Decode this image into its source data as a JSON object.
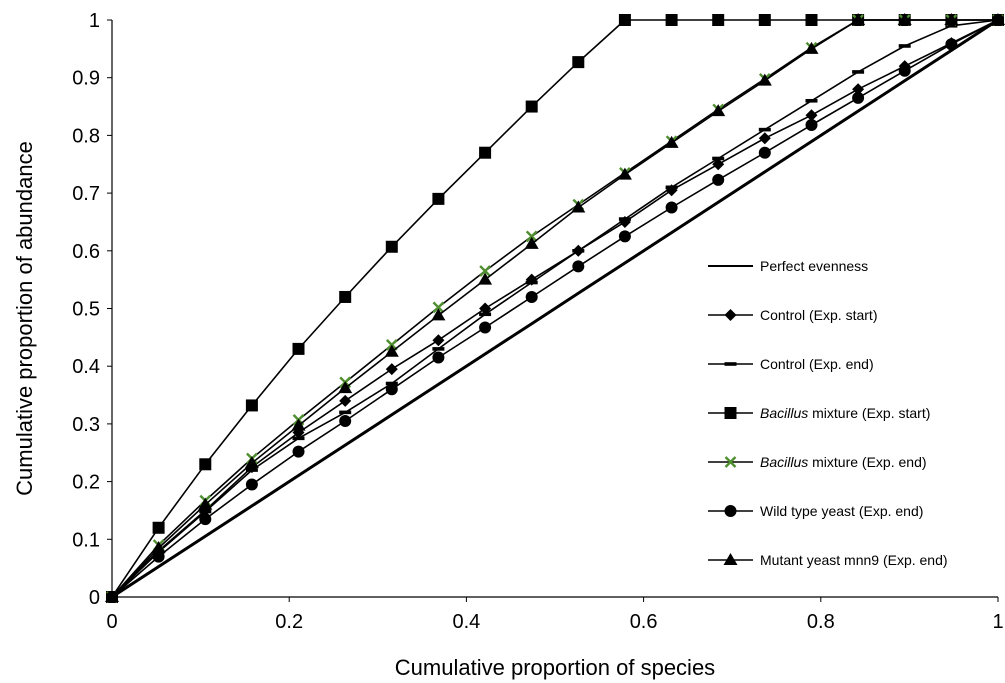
{
  "chart_data": {
    "type": "line",
    "xlabel": "Cumulative proportion of species",
    "ylabel": "Cumulative proportion of abundance",
    "xlim": [
      0,
      1
    ],
    "ylim": [
      0,
      1
    ],
    "x_ticks": [
      "0",
      "0.2",
      "0.4",
      "0.6",
      "0.8",
      "1"
    ],
    "y_ticks": [
      "0",
      "0.1",
      "0.2",
      "0.3",
      "0.4",
      "0.5",
      "0.6",
      "0.7",
      "0.8",
      "0.9",
      "1"
    ],
    "grid": false,
    "legend_position": "right",
    "x": [
      0,
      0.0526,
      0.1053,
      0.1579,
      0.2105,
      0.2632,
      0.3158,
      0.3684,
      0.4211,
      0.4737,
      0.5263,
      0.5789,
      0.6316,
      0.6842,
      0.7368,
      0.7895,
      0.8421,
      0.8947,
      0.9474,
      1
    ],
    "series": [
      {
        "name": "Perfect evenness",
        "marker": "none",
        "line_width": 3,
        "values": [
          0,
          0.0526,
          0.1053,
          0.1579,
          0.2105,
          0.2632,
          0.3158,
          0.3684,
          0.4211,
          0.4737,
          0.5263,
          0.5789,
          0.6316,
          0.6842,
          0.7368,
          0.7895,
          0.8421,
          0.8947,
          0.9474,
          1
        ]
      },
      {
        "name": "Control (Exp. start)",
        "marker": "diamond",
        "line_width": 1.6,
        "values": [
          0,
          0.08,
          0.15,
          0.225,
          0.285,
          0.34,
          0.395,
          0.445,
          0.5,
          0.55,
          0.6,
          0.65,
          0.705,
          0.75,
          0.795,
          0.835,
          0.88,
          0.92,
          0.96,
          1
        ]
      },
      {
        "name": "Control (Exp. end)",
        "marker": "dash",
        "line_width": 1.6,
        "values": [
          0,
          0.078,
          0.148,
          0.22,
          0.275,
          0.32,
          0.37,
          0.43,
          0.49,
          0.545,
          0.6,
          0.655,
          0.71,
          0.76,
          0.81,
          0.86,
          0.91,
          0.955,
          0.99,
          1
        ]
      },
      {
        "name": "Bacillus mixture (Exp. start)",
        "name_italic": "Bacillus",
        "name_rest": " mixture (Exp. start)",
        "marker": "square",
        "line_width": 1.6,
        "values": [
          0,
          0.12,
          0.23,
          0.332,
          0.43,
          0.52,
          0.607,
          0.69,
          0.77,
          0.85,
          0.927,
          1,
          1,
          1,
          1,
          1,
          1,
          1,
          1,
          1
        ]
      },
      {
        "name": "Bacillus mixture (Exp. end)",
        "name_italic": "Bacillus",
        "name_rest": " mixture (Exp. end)",
        "marker": "x",
        "marker_color": "#4f8f2f",
        "line_width": 1.6,
        "values": [
          0,
          0.09,
          0.167,
          0.24,
          0.307,
          0.372,
          0.437,
          0.502,
          0.565,
          0.625,
          0.68,
          0.735,
          0.79,
          0.845,
          0.898,
          0.952,
          1,
          1,
          1,
          1
        ]
      },
      {
        "name": "Wild type yeast (Exp. end)",
        "marker": "circle",
        "line_width": 1.6,
        "values": [
          0,
          0.07,
          0.135,
          0.195,
          0.252,
          0.305,
          0.36,
          0.415,
          0.467,
          0.52,
          0.573,
          0.625,
          0.675,
          0.723,
          0.77,
          0.818,
          0.865,
          0.912,
          0.958,
          1
        ]
      },
      {
        "name": "Mutant yeast mnn9 (Exp. end)",
        "marker": "triangle",
        "line_width": 1.6,
        "values": [
          0,
          0.085,
          0.16,
          0.232,
          0.297,
          0.362,
          0.425,
          0.488,
          0.55,
          0.612,
          0.675,
          0.732,
          0.787,
          0.842,
          0.895,
          0.95,
          1,
          1,
          1,
          1
        ]
      }
    ]
  }
}
